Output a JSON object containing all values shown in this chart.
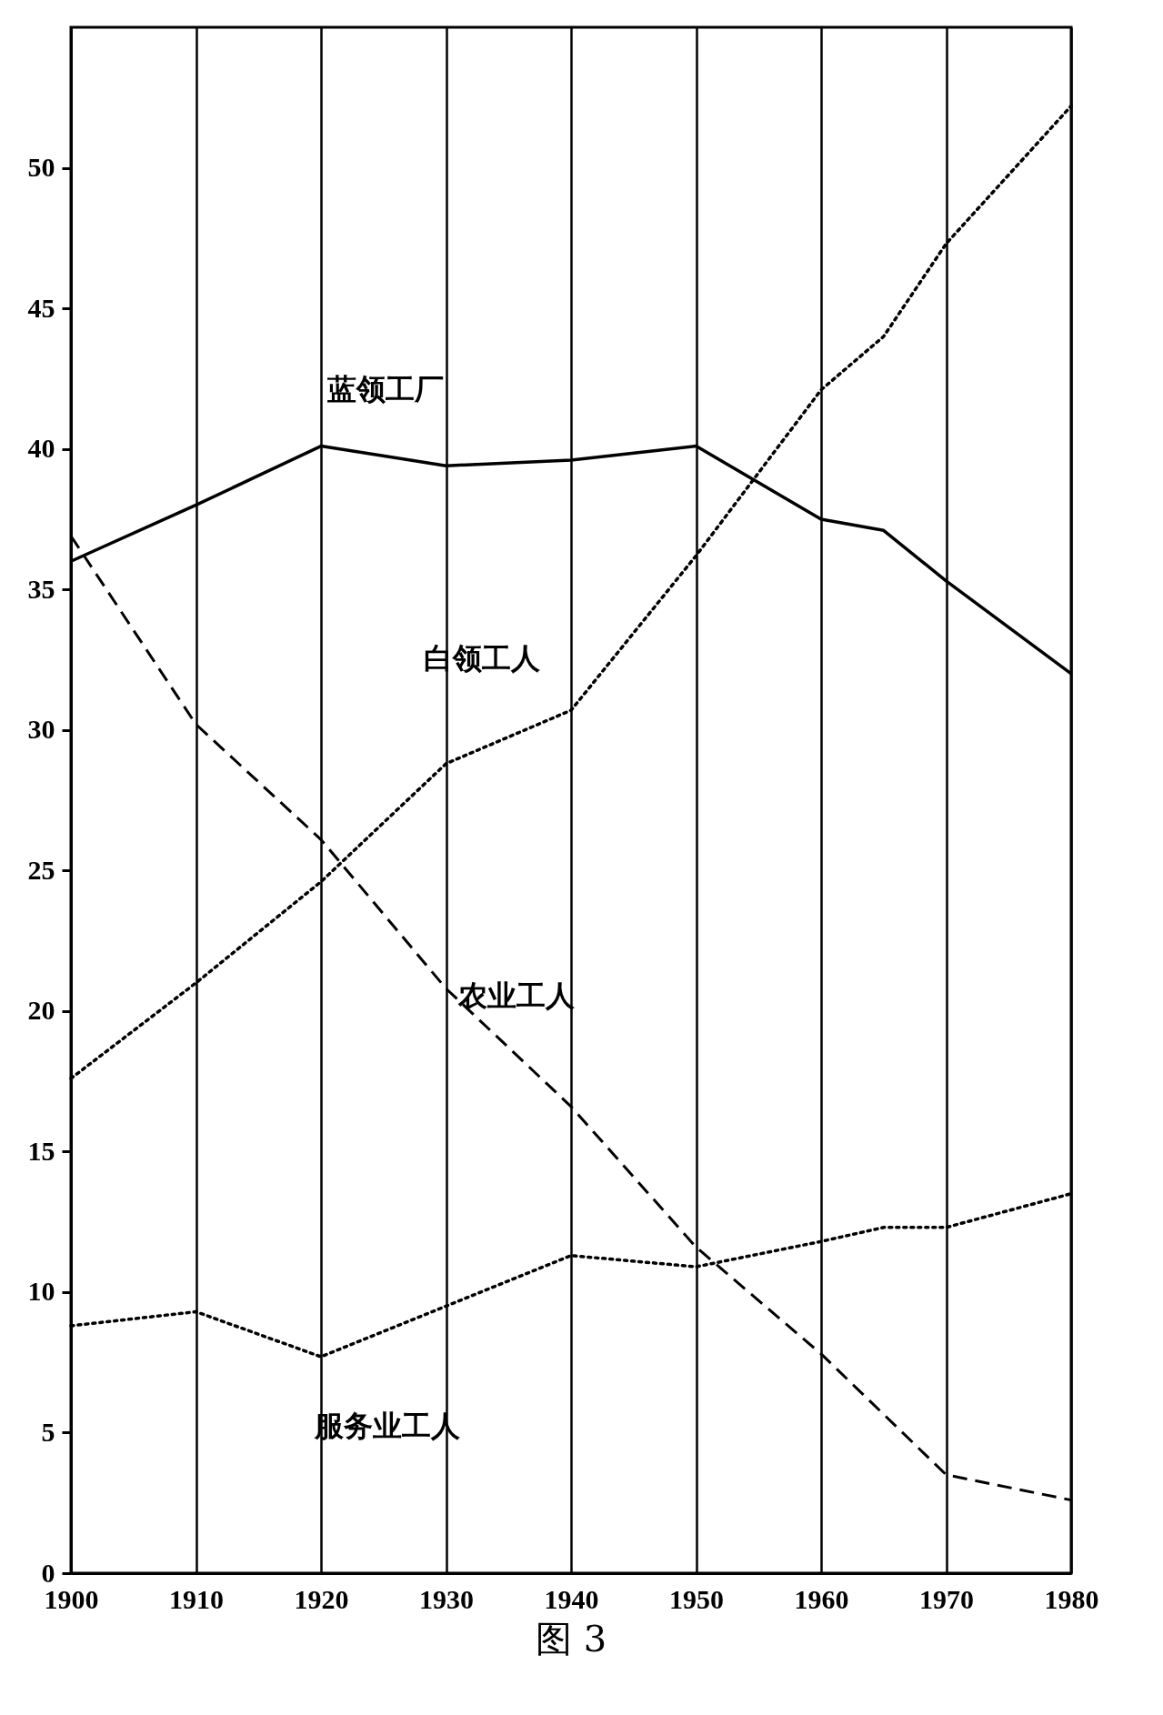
{
  "chart_data": {
    "type": "line",
    "x": [
      1900,
      1910,
      1920,
      1930,
      1940,
      1950,
      1960,
      1965,
      1970,
      1980
    ],
    "series": [
      {
        "name": "蓝领工厂",
        "color": "#000000",
        "line_style": "solid",
        "values": [
          36,
          38,
          40.1,
          39.4,
          39.6,
          40.1,
          37.5,
          37.1,
          35.3,
          32
        ]
      },
      {
        "name": "白领工人",
        "color": "#000000",
        "line_style": "dotted",
        "values": [
          17.6,
          21,
          24.6,
          28.8,
          30.7,
          36.2,
          42.1,
          44,
          47.3,
          52.2
        ]
      },
      {
        "name": "农业工人",
        "color": "#000000",
        "line_style": "dashed",
        "x": [
          1900,
          1910,
          1920,
          1930,
          1940,
          1950,
          1960,
          1970,
          1980
        ],
        "values": [
          36.9,
          30.2,
          26.1,
          20.8,
          16.6,
          11.6,
          7.8,
          3.5,
          2.6
        ]
      },
      {
        "name": "服务业工人",
        "color": "#000000",
        "line_style": "dotted",
        "values": [
          8.8,
          9.3,
          7.7,
          9.5,
          11.3,
          10.9,
          11.8,
          12.3,
          12.3,
          13.5
        ]
      }
    ],
    "xlim": [
      1900,
      1980
    ],
    "xticks": [
      1900,
      1910,
      1920,
      1930,
      1940,
      1950,
      1960,
      1970,
      1980
    ],
    "ylim": [
      0,
      55
    ],
    "yticks": [
      0,
      5,
      10,
      15,
      20,
      25,
      30,
      35,
      40,
      45,
      50
    ],
    "grid": "x",
    "annotations": [
      "图 3"
    ]
  }
}
